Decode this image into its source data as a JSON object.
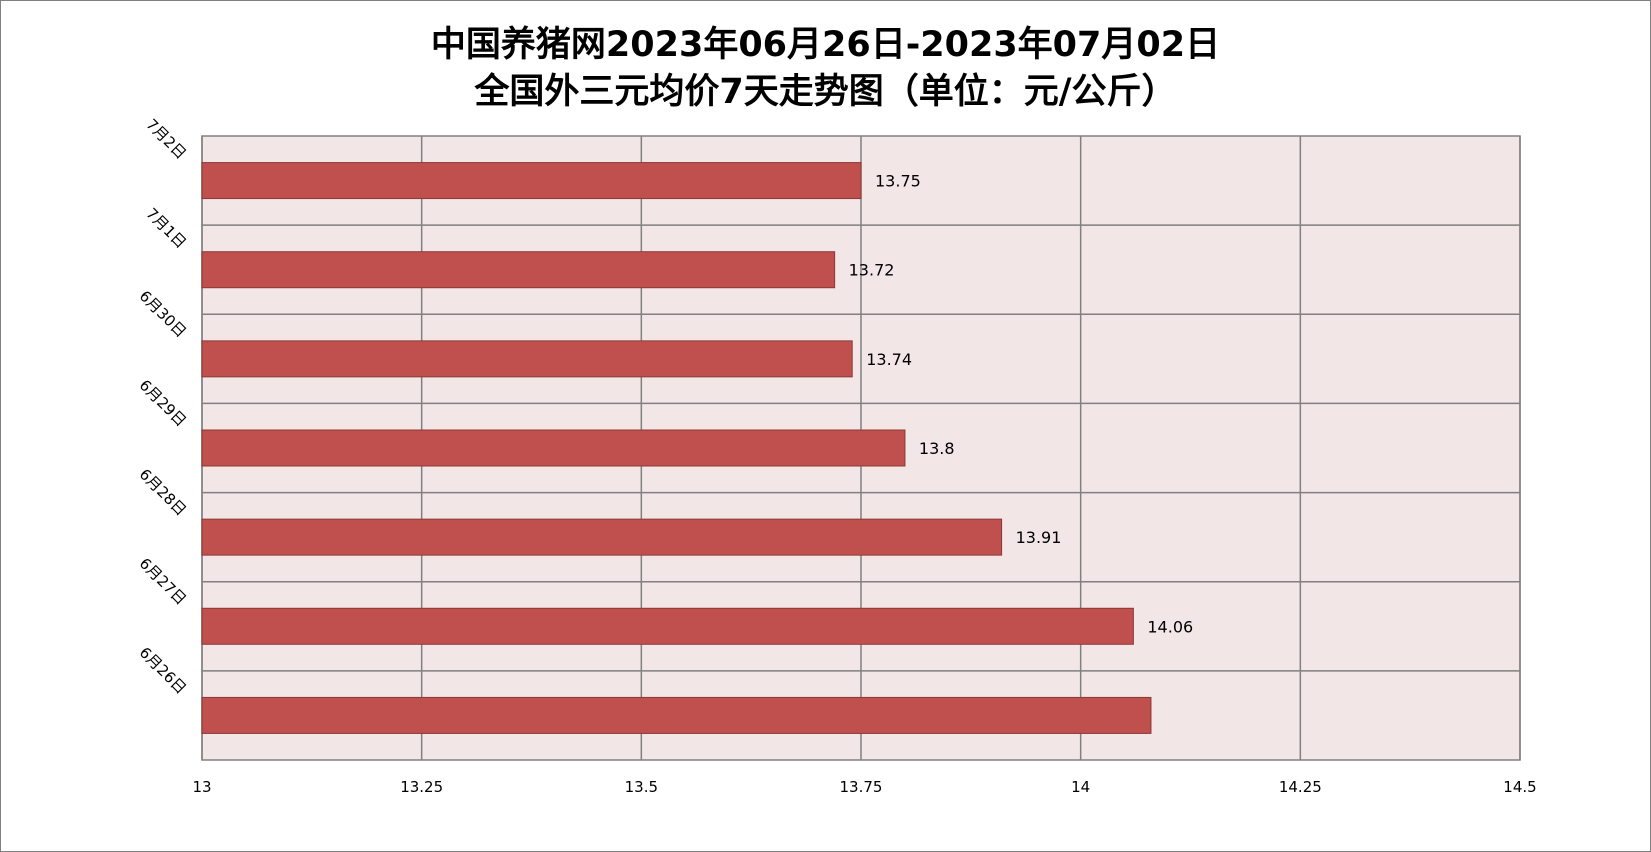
{
  "chart_data": {
    "type": "bar",
    "orientation": "horizontal",
    "title": "中国养猪网2023年06月26日-2023年07月02日\n全国外三元均价7天走势图（单位：元/公斤）",
    "title_lines": [
      "中国养猪网2023年06月26日-2023年07月02日",
      "全国外三元均价7天走势图（单位：元/公斤）"
    ],
    "categories": [
      "7月2日",
      "7月1日",
      "6月30日",
      "6月29日",
      "6月28日",
      "6月27日",
      "6月26日"
    ],
    "values": [
      13.75,
      13.72,
      13.74,
      13.8,
      13.91,
      14.06,
      14.08
    ],
    "data_labels": [
      "13.75",
      "13.72",
      "13.74",
      "13.8",
      "13.91",
      "14.06",
      ""
    ],
    "xlim": [
      13,
      14.5
    ],
    "x_ticks": [
      "13",
      "13.25",
      "13.5",
      "13.75",
      "14",
      "14.25",
      "14.5"
    ],
    "grid": true,
    "xlabel": "",
    "ylabel": "",
    "colors": {
      "bar_fill": "#c0504d",
      "bar_stroke": "#8c3836",
      "plot_background": "#f2e6e6",
      "grid": "#808080"
    }
  }
}
